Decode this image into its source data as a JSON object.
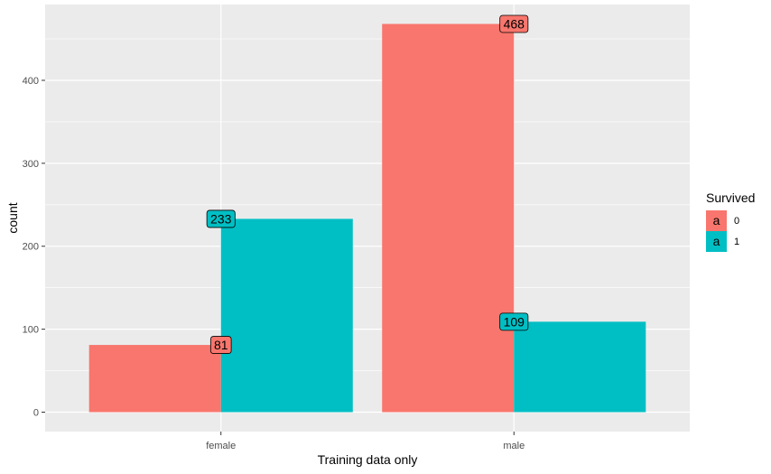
{
  "chart_data": {
    "type": "bar",
    "categories": [
      "female",
      "male"
    ],
    "series": [
      {
        "name": "0",
        "color": "#f8766d",
        "values": [
          81,
          468
        ]
      },
      {
        "name": "1",
        "color": "#00bfc4",
        "values": [
          233,
          109
        ]
      }
    ],
    "xlabel": "Training data only",
    "ylabel": "count",
    "yticks": [
      0,
      100,
      200,
      300,
      400
    ],
    "ylim": [
      -23.4,
      491.4
    ],
    "grid": true,
    "legend": {
      "title": "Survived",
      "position": "right",
      "key_glyph": "a"
    },
    "data_labels": true,
    "panel_background": "#ebebeb",
    "grid_color": "#ffffff"
  }
}
